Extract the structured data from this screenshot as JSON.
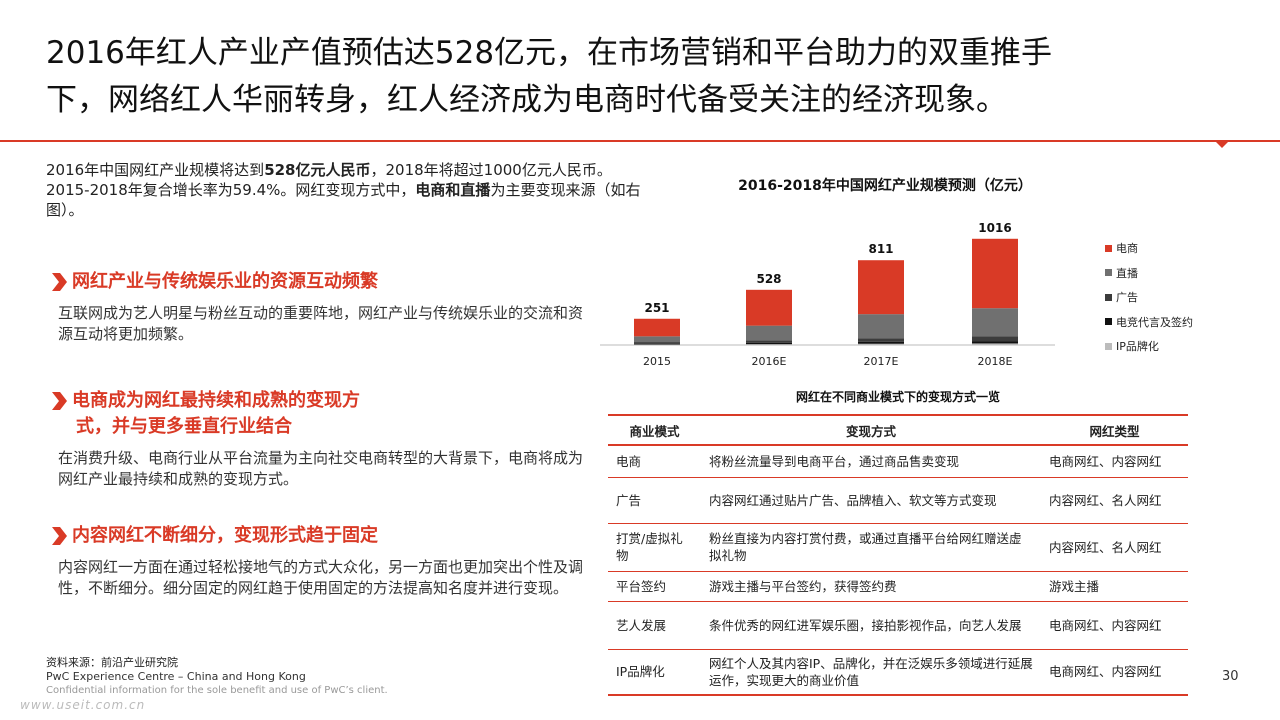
{
  "header": {
    "title_line1": "2016年红人产业产值预估达528亿元，在市场营销和平台助力的双重推手",
    "title_line2": "下，网络红人华丽转身，红人经济成为电商时代备受关注的经济现象。"
  },
  "intro": {
    "p1": "2016年中国网红产业规模将达到",
    "p1_bold": "528亿元人民币",
    "p2": "，2018年将超过1000亿元人民币。2015-2018年复合增长率为59.4%。网红变现方式中，",
    "p2_bold": "电商和直播",
    "p3": "为主要变现来源（如右图）。"
  },
  "sections": [
    {
      "heading": "网红产业与传统娱乐业的资源互动频繁",
      "body": "互联网成为艺人明星与粉丝互动的重要阵地，网红产业与传统娱乐业的交流和资源互动将更加频繁。"
    },
    {
      "heading_line1": "电商成为网红最持续和成熟的变现方",
      "heading_line2": "式，并与更多垂直行业结合",
      "body": "在消费升级、电商行业从平台流量为主向社交电商转型的大背景下，电商将成为网红产业最持续和成熟的变现方式。"
    },
    {
      "heading": "内容网红不断细分，变现形式趋于固定",
      "body": "内容网红一方面在通过轻松接地气的方式大众化，另一方面也更加突出个性及调性，不断细分。细分固定的网红趋于使用固定的方法提高知名度并进行变现。"
    }
  ],
  "footer": {
    "source": "资料来源：前沿产业研究院",
    "pwc": "PwC Experience Centre – China and Hong Kong",
    "confidential": "Confidential information for the sole benefit and use of PwC’s client.",
    "watermark": "www.useit.com.cn",
    "page_number": "30"
  },
  "chart_data": {
    "type": "bar",
    "stacked": true,
    "title": "2016-2018年中国网红产业规模预测（亿元）",
    "categories": [
      "2015",
      "2016E",
      "2017E",
      "2018E"
    ],
    "totals": [
      251,
      528,
      811,
      1016
    ],
    "total_labels": [
      "251",
      "528",
      "811",
      "1016"
    ],
    "series": [
      {
        "name": "IP品牌化",
        "color": "#bcbcbc",
        "values": [
          5,
          8,
          12,
          15
        ]
      },
      {
        "name": "电竞代言及签约",
        "color": "#111111",
        "values": [
          8,
          12,
          18,
          22
        ]
      },
      {
        "name": "广告",
        "color": "#3c3c3c",
        "values": [
          15,
          25,
          35,
          45
        ]
      },
      {
        "name": "直播",
        "color": "#707070",
        "values": [
          55,
          140,
          230,
          270
        ]
      },
      {
        "name": "电商",
        "color": "#d93a26",
        "values": [
          168,
          343,
          516,
          664
        ]
      }
    ],
    "legend_order": [
      "电商",
      "直播",
      "广告",
      "电竞代言及签约",
      "IP品牌化"
    ],
    "legend_position": "right",
    "ylim": [
      0,
      1100
    ],
    "grid": false
  },
  "table": {
    "title": "网红在不同商业模式下的变现方式一览",
    "headers": [
      "商业模式",
      "变现方式",
      "网红类型"
    ],
    "rows": [
      [
        "电商",
        "将粉丝流量导到电商平台，通过商品售卖变现",
        "电商网红、内容网红"
      ],
      [
        "广告",
        "内容网红通过贴片广告、品牌植入、软文等方式变现",
        "内容网红、名人网红"
      ],
      [
        "打赏/虚拟礼物",
        "粉丝直接为内容打赏付费，或通过直播平台给网红赠送虚拟礼物",
        "内容网红、名人网红"
      ],
      [
        "平台签约",
        "游戏主播与平台签约，获得签约费",
        "游戏主播"
      ],
      [
        "艺人发展",
        "条件优秀的网红进军娱乐圈，接拍影视作品，向艺人发展",
        "电商网红、内容网红"
      ],
      [
        "IP品牌化",
        "网红个人及其内容IP、品牌化，并在泛娱乐多领域进行延展运作，实现更大的商业价值",
        "电商网红、内容网红"
      ]
    ]
  }
}
